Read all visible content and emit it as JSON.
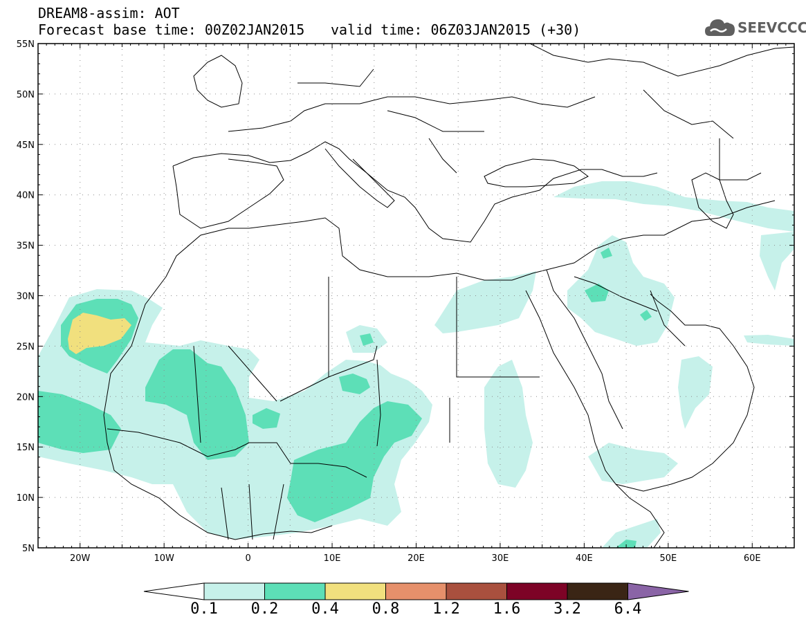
{
  "header": {
    "title_line1": "DREAM8-assim: AOT",
    "title_line2": "Forecast base time: 00Z02JAN2015",
    "valid_time": "valid time: 06Z03JAN2015 (+30)",
    "logo_text": "SEEVCCC",
    "logo_icon": "cloud-icon"
  },
  "map": {
    "lon_range": [
      -25,
      65
    ],
    "lat_range": [
      5,
      55
    ],
    "grid": "dotted",
    "lat_labels": [
      "55N",
      "50N",
      "45N",
      "40N",
      "35N",
      "30N",
      "25N",
      "20N",
      "15N",
      "10N",
      "5N"
    ],
    "lat_values": [
      55,
      50,
      45,
      40,
      35,
      30,
      25,
      20,
      15,
      10,
      5
    ],
    "lon_labels": [
      "20W",
      "10W",
      "0",
      "10E",
      "20E",
      "30E",
      "40E",
      "50E",
      "60E"
    ],
    "lon_values": [
      -20,
      -10,
      0,
      10,
      20,
      30,
      40,
      50,
      60
    ]
  },
  "legend": {
    "labels": [
      "0.1",
      "0.2",
      "0.4",
      "0.8",
      "1.2",
      "1.6",
      "3.2",
      "6.4"
    ],
    "colors": [
      "#c6f1ea",
      "#5ddfb7",
      "#f1e07e",
      "#e6906b",
      "#a9503e",
      "#7d0326",
      "#3a2515",
      "#8a64a6"
    ],
    "lower_extend_color": "#ffffff"
  }
}
